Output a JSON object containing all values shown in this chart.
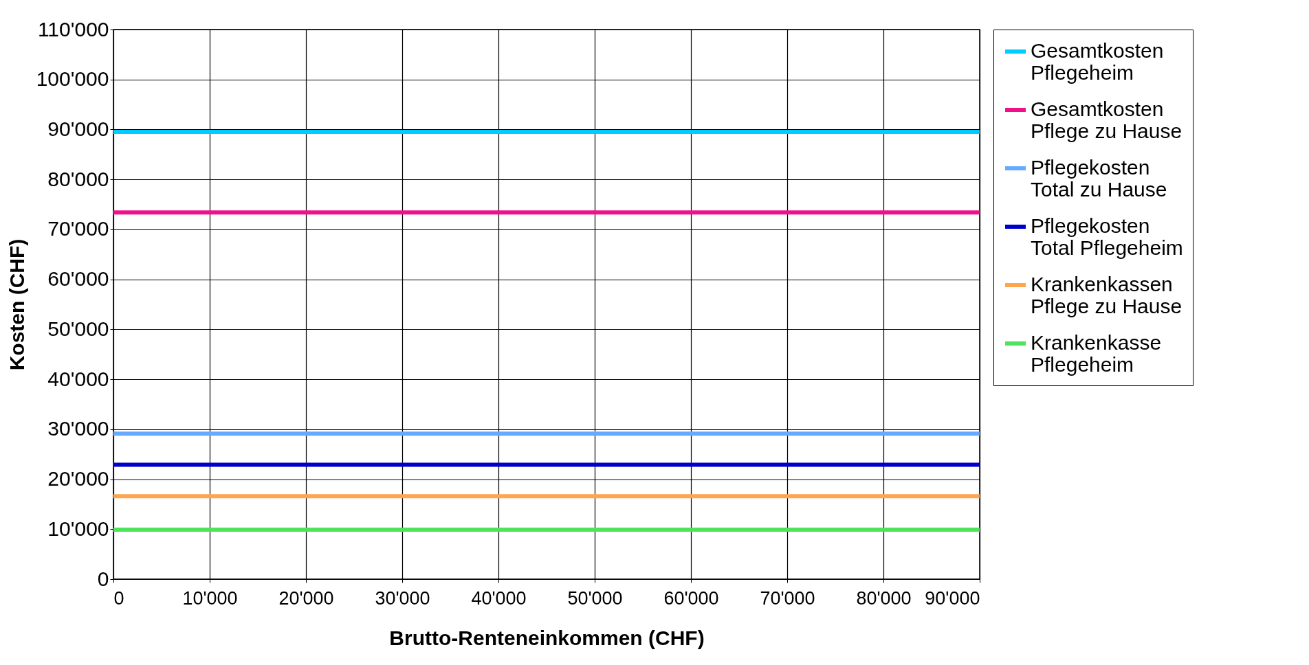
{
  "chart_data": {
    "type": "line",
    "xlabel": "Brutto-Renteneinkommen (CHF)",
    "ylabel": "Kosten (CHF)",
    "x": [
      0,
      90000
    ],
    "series": [
      {
        "name": "Gesamtkosten Pflegeheim",
        "color": "#00ccff",
        "values": [
          89500,
          89500
        ]
      },
      {
        "name": "Gesamtkosten Pflege zu Hause",
        "color": "#f0118a",
        "values": [
          73400,
          73400
        ]
      },
      {
        "name": "Pflegekosten Total zu Hause",
        "color": "#66aaff",
        "values": [
          29100,
          29100
        ]
      },
      {
        "name": "Pflegekosten Total Pflegeheim",
        "color": "#0000cc",
        "values": [
          22900,
          22900
        ]
      },
      {
        "name": "Krankenkassen Pflege zu Hause",
        "color": "#ffa64d",
        "values": [
          16600,
          16600
        ]
      },
      {
        "name": "Krankenkasse Pflegeheim",
        "color": "#4de35a",
        "values": [
          9900,
          9900
        ]
      }
    ],
    "xlim": [
      0,
      90000
    ],
    "xticks": [
      0,
      {
        "value": 10000,
        "label": "10'000"
      },
      {
        "value": 20000,
        "label": "20'000"
      },
      {
        "value": 30000,
        "label": "30'000"
      },
      {
        "value": 40000,
        "label": "40'000"
      },
      {
        "value": 50000,
        "label": "50'000"
      },
      {
        "value": 60000,
        "label": "60'000"
      },
      {
        "value": 70000,
        "label": "70'000"
      },
      {
        "value": 80000,
        "label": "80'000"
      },
      {
        "value": 90000,
        "label": "90'000"
      }
    ],
    "ylim": [
      0,
      110000
    ],
    "yticks": [
      0,
      {
        "value": 10000,
        "label": "10'000"
      },
      {
        "value": 20000,
        "label": "20'000"
      },
      {
        "value": 30000,
        "label": "30'000"
      },
      {
        "value": 40000,
        "label": "40'000"
      },
      {
        "value": 50000,
        "label": "50'000"
      },
      {
        "value": 60000,
        "label": "60'000"
      },
      {
        "value": 70000,
        "label": "70'000"
      },
      {
        "value": 80000,
        "label": "80'000"
      },
      {
        "value": 90000,
        "label": "90'000"
      },
      {
        "value": 100000,
        "label": "100'000"
      },
      {
        "value": 110000,
        "label": "110'000"
      }
    ],
    "grid": true,
    "legend": "right",
    "marker": "none",
    "line_style": "solid"
  }
}
